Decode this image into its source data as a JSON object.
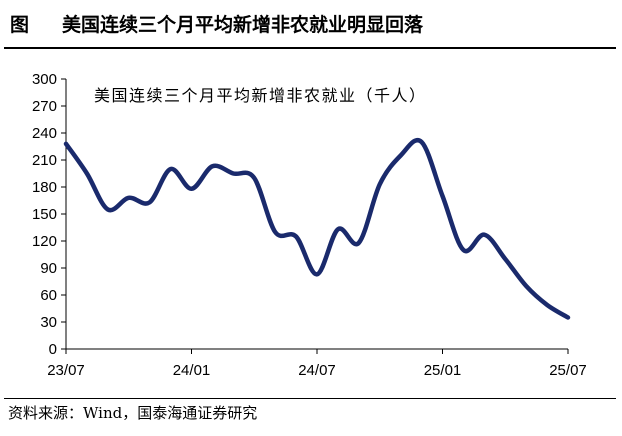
{
  "figure": {
    "label": "图",
    "title": "美国连续三个月平均新增非农就业明显回落",
    "source": "资料来源：Wind，国泰海通证券研究"
  },
  "chart_data": {
    "type": "line",
    "title": "美国连续三个月平均新增非农就业明显回落",
    "xlabel": "",
    "ylabel": "",
    "ylim": [
      0,
      300
    ],
    "yticks": [
      0,
      30,
      60,
      90,
      120,
      150,
      180,
      210,
      240,
      270,
      300
    ],
    "xticks": [
      {
        "index": 0,
        "label": "23/07"
      },
      {
        "index": 6,
        "label": "24/01"
      },
      {
        "index": 12,
        "label": "24/07"
      },
      {
        "index": 18,
        "label": "25/01"
      },
      {
        "index": 24,
        "label": "25/07"
      }
    ],
    "grid": false,
    "legend": "none",
    "x": [
      "23/07",
      "23/08",
      "23/09",
      "23/10",
      "23/11",
      "23/12",
      "24/01",
      "24/02",
      "24/03",
      "24/04",
      "24/05",
      "24/06",
      "24/07",
      "24/08",
      "24/09",
      "24/10",
      "24/11",
      "24/12",
      "25/01",
      "25/02",
      "25/03",
      "25/04",
      "25/05",
      "25/06",
      "25/07"
    ],
    "series": [
      {
        "name": "美国连续三个月平均新增非农就业（千人）",
        "color": "#1a2a6c",
        "values": [
          228,
          195,
          155,
          168,
          163,
          200,
          178,
          203,
          195,
          190,
          130,
          125,
          83,
          133,
          118,
          183,
          215,
          230,
          170,
          110,
          127,
          100,
          70,
          49,
          35
        ]
      }
    ]
  }
}
